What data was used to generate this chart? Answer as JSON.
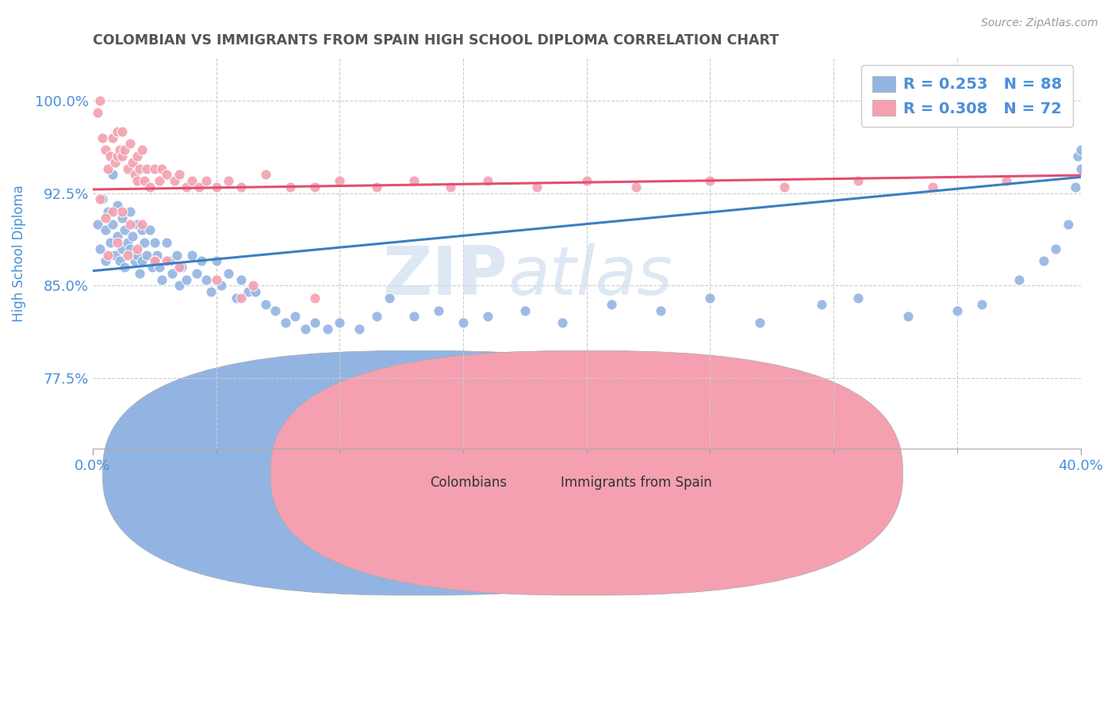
{
  "title": "COLOMBIAN VS IMMIGRANTS FROM SPAIN HIGH SCHOOL DIPLOMA CORRELATION CHART",
  "source": "Source: ZipAtlas.com",
  "ylabel": "High School Diploma",
  "xlim": [
    0.0,
    0.4
  ],
  "ylim": [
    0.718,
    1.035
  ],
  "yticks": [
    0.775,
    0.85,
    0.925,
    1.0
  ],
  "ytick_labels": [
    "77.5%",
    "85.0%",
    "92.5%",
    "100.0%"
  ],
  "xtick_labels": [
    "0.0%",
    "40.0%"
  ],
  "colombian_R": 0.253,
  "colombian_N": 88,
  "spain_R": 0.308,
  "spain_N": 72,
  "colombian_color": "#92b4e3",
  "spain_color": "#f4a0b0",
  "colombian_line_color": "#3a7fc1",
  "spain_line_color": "#e05070",
  "background_color": "#ffffff",
  "grid_color": "#cccccc",
  "title_color": "#555555",
  "axis_label_color": "#4a90d9",
  "legend_text_color": "#4a90d9",
  "colombian_scatter_x": [
    0.002,
    0.003,
    0.004,
    0.005,
    0.005,
    0.006,
    0.007,
    0.008,
    0.008,
    0.009,
    0.01,
    0.01,
    0.011,
    0.012,
    0.012,
    0.013,
    0.013,
    0.014,
    0.015,
    0.015,
    0.016,
    0.017,
    0.018,
    0.018,
    0.019,
    0.02,
    0.02,
    0.021,
    0.022,
    0.023,
    0.024,
    0.025,
    0.026,
    0.027,
    0.028,
    0.03,
    0.031,
    0.032,
    0.034,
    0.035,
    0.036,
    0.038,
    0.04,
    0.042,
    0.044,
    0.046,
    0.048,
    0.05,
    0.052,
    0.055,
    0.058,
    0.06,
    0.063,
    0.066,
    0.07,
    0.074,
    0.078,
    0.082,
    0.086,
    0.09,
    0.095,
    0.1,
    0.108,
    0.115,
    0.12,
    0.13,
    0.14,
    0.15,
    0.16,
    0.175,
    0.19,
    0.21,
    0.23,
    0.25,
    0.27,
    0.295,
    0.31,
    0.33,
    0.35,
    0.36,
    0.375,
    0.385,
    0.39,
    0.395,
    0.398,
    0.399,
    0.4,
    0.4
  ],
  "colombian_scatter_y": [
    0.9,
    0.88,
    0.92,
    0.895,
    0.87,
    0.91,
    0.885,
    0.94,
    0.9,
    0.875,
    0.915,
    0.89,
    0.87,
    0.905,
    0.88,
    0.895,
    0.865,
    0.885,
    0.91,
    0.88,
    0.89,
    0.87,
    0.9,
    0.875,
    0.86,
    0.895,
    0.87,
    0.885,
    0.875,
    0.895,
    0.865,
    0.885,
    0.875,
    0.865,
    0.855,
    0.885,
    0.87,
    0.86,
    0.875,
    0.85,
    0.865,
    0.855,
    0.875,
    0.86,
    0.87,
    0.855,
    0.845,
    0.87,
    0.85,
    0.86,
    0.84,
    0.855,
    0.845,
    0.845,
    0.835,
    0.83,
    0.82,
    0.825,
    0.815,
    0.82,
    0.815,
    0.82,
    0.815,
    0.825,
    0.84,
    0.825,
    0.83,
    0.82,
    0.825,
    0.83,
    0.82,
    0.835,
    0.83,
    0.84,
    0.82,
    0.835,
    0.84,
    0.825,
    0.83,
    0.835,
    0.855,
    0.87,
    0.88,
    0.9,
    0.93,
    0.955,
    0.945,
    0.96
  ],
  "spain_scatter_x": [
    0.002,
    0.003,
    0.004,
    0.005,
    0.006,
    0.007,
    0.008,
    0.009,
    0.01,
    0.01,
    0.011,
    0.012,
    0.012,
    0.013,
    0.014,
    0.015,
    0.016,
    0.017,
    0.018,
    0.018,
    0.019,
    0.02,
    0.021,
    0.022,
    0.023,
    0.025,
    0.027,
    0.028,
    0.03,
    0.033,
    0.035,
    0.038,
    0.04,
    0.043,
    0.046,
    0.05,
    0.055,
    0.06,
    0.07,
    0.08,
    0.09,
    0.1,
    0.115,
    0.13,
    0.145,
    0.16,
    0.18,
    0.2,
    0.22,
    0.25,
    0.28,
    0.31,
    0.34,
    0.37,
    0.06,
    0.025,
    0.015,
    0.008,
    0.003,
    0.005,
    0.012,
    0.02,
    0.03,
    0.018,
    0.01,
    0.006,
    0.014,
    0.025,
    0.035,
    0.05,
    0.065,
    0.09
  ],
  "spain_scatter_y": [
    0.99,
    1.0,
    0.97,
    0.96,
    0.945,
    0.955,
    0.97,
    0.95,
    0.955,
    0.975,
    0.96,
    0.955,
    0.975,
    0.96,
    0.945,
    0.965,
    0.95,
    0.94,
    0.955,
    0.935,
    0.945,
    0.96,
    0.935,
    0.945,
    0.93,
    0.945,
    0.935,
    0.945,
    0.94,
    0.935,
    0.94,
    0.93,
    0.935,
    0.93,
    0.935,
    0.93,
    0.935,
    0.93,
    0.94,
    0.93,
    0.93,
    0.935,
    0.93,
    0.935,
    0.93,
    0.935,
    0.93,
    0.935,
    0.93,
    0.935,
    0.93,
    0.935,
    0.93,
    0.935,
    0.84,
    0.87,
    0.9,
    0.91,
    0.92,
    0.905,
    0.91,
    0.9,
    0.87,
    0.88,
    0.885,
    0.875,
    0.875,
    0.87,
    0.865,
    0.855,
    0.85,
    0.84
  ]
}
